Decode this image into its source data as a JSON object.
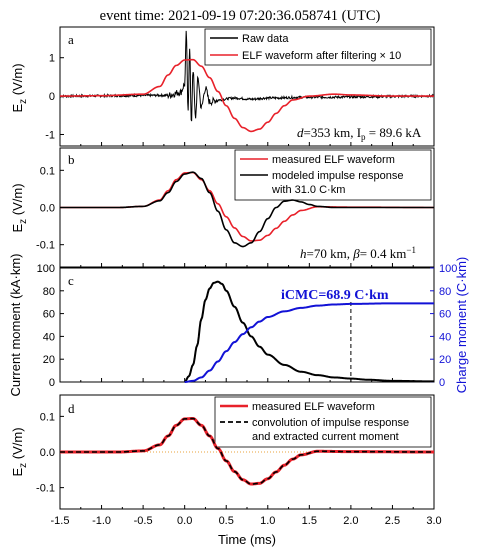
{
  "figure": {
    "title": "event time: 2021-09-19 07:20:36.058741 (UTC)",
    "xlabel": "Time (ms)",
    "x_ticks": [
      "-1.5",
      "-1.0",
      "-0.5",
      "0.0",
      "0.5",
      "1.0",
      "1.5",
      "2.0",
      "2.5",
      "3.0"
    ],
    "colors": {
      "red": "#e8212a",
      "black": "#000000",
      "blue": "#1212d6",
      "orange_dots": "#e8a33c"
    }
  },
  "chart_data": [
    {
      "panel": "a",
      "type": "line",
      "ylabel_main": "E",
      "ylabel_sub": "z",
      "ylabel_unit": " (V/m)",
      "xlim": [
        -1.5,
        3.0
      ],
      "ylim": [
        -1.3,
        1.8
      ],
      "y_ticks": [
        -1,
        0,
        1
      ],
      "legend": [
        "Raw data",
        "ELF waveform after filtering × 10"
      ],
      "legend_position": "top-right",
      "annotation_d": "d",
      "annotation_mid": "=353 km, I",
      "annotation_sub": "p",
      "annotation_end": " = 89.6 kA",
      "series": [
        {
          "name": "Raw data",
          "color": "#000000",
          "style": "noisy-impulse",
          "x": [
            -1.5,
            -0.2,
            -0.05,
            0.0,
            0.02,
            0.04,
            0.06,
            0.08,
            0.1,
            0.13,
            0.16,
            0.2,
            0.25,
            0.3,
            0.4,
            0.6,
            0.8,
            1.0,
            1.5,
            3.0
          ],
          "y": [
            0.0,
            0.02,
            0.1,
            0.3,
            1.65,
            -0.4,
            1.3,
            -0.75,
            0.7,
            -0.55,
            0.45,
            -0.3,
            0.2,
            -0.15,
            -0.1,
            -0.05,
            -0.08,
            -0.05,
            -0.03,
            0.0
          ]
        },
        {
          "name": "ELF waveform after filtering × 10",
          "color": "#e8212a",
          "x": [
            -1.5,
            -1.0,
            -0.5,
            -0.3,
            -0.2,
            -0.1,
            0.0,
            0.1,
            0.2,
            0.3,
            0.4,
            0.5,
            0.6,
            0.7,
            0.8,
            0.9,
            1.0,
            1.1,
            1.2,
            1.3,
            1.5,
            1.8,
            2.0,
            2.5,
            3.0
          ],
          "y": [
            0,
            0.01,
            0.05,
            0.25,
            0.55,
            0.8,
            0.94,
            0.95,
            0.78,
            0.48,
            0.12,
            -0.25,
            -0.58,
            -0.82,
            -0.92,
            -0.86,
            -0.68,
            -0.45,
            -0.25,
            -0.1,
            0.0,
            0.05,
            0.03,
            0.0,
            0.0
          ]
        }
      ]
    },
    {
      "panel": "b",
      "type": "line",
      "ylabel_main": "E",
      "ylabel_sub": "z",
      "ylabel_unit": " (V/m)",
      "xlim": [
        -1.5,
        3.0
      ],
      "ylim": [
        -0.16,
        0.16
      ],
      "y_ticks": [
        -0.1,
        0.0,
        0.1
      ],
      "legend": [
        "measured ELF waveform",
        "modeled impulse response",
        "with 31.0 C·km"
      ],
      "legend_position": "top-right",
      "annotation_h": "h",
      "annotation_mid": "=70 km, ",
      "annotation_beta": "β",
      "annotation_end": "= 0.4 km",
      "annotation_sup": "−1",
      "series": [
        {
          "name": "measured ELF waveform",
          "color": "#e8212a",
          "x": [
            -1.5,
            -0.8,
            -0.5,
            -0.3,
            -0.2,
            -0.1,
            0.0,
            0.1,
            0.2,
            0.3,
            0.4,
            0.5,
            0.6,
            0.7,
            0.8,
            0.9,
            1.0,
            1.1,
            1.2,
            1.3,
            1.4,
            1.6,
            2.0,
            3.0
          ],
          "y": [
            0,
            0,
            0.003,
            0.02,
            0.045,
            0.075,
            0.093,
            0.094,
            0.075,
            0.045,
            0.01,
            -0.025,
            -0.055,
            -0.078,
            -0.09,
            -0.088,
            -0.075,
            -0.056,
            -0.037,
            -0.02,
            -0.008,
            0.002,
            0.001,
            0
          ]
        },
        {
          "name": "modeled impulse response",
          "color": "#000000",
          "x": [
            -1.5,
            -0.8,
            -0.5,
            -0.3,
            -0.2,
            -0.1,
            0.0,
            0.1,
            0.2,
            0.3,
            0.4,
            0.5,
            0.6,
            0.7,
            0.8,
            0.9,
            1.0,
            1.1,
            1.2,
            1.3,
            1.4,
            1.5,
            1.6,
            1.8,
            2.0,
            3.0
          ],
          "y": [
            0,
            0,
            0.003,
            0.018,
            0.04,
            0.07,
            0.09,
            0.095,
            0.078,
            0.04,
            -0.01,
            -0.06,
            -0.095,
            -0.105,
            -0.095,
            -0.065,
            -0.03,
            0.0,
            0.017,
            0.02,
            0.015,
            0.008,
            0.003,
            0,
            0,
            0
          ]
        }
      ]
    },
    {
      "panel": "c",
      "type": "line",
      "ylabel_left": "Current moment (kA·km)",
      "ylabel_right": "Charge moment (C·km)",
      "xlim": [
        -1.5,
        3.0
      ],
      "ylim_left": [
        0,
        100
      ],
      "ylim_right": [
        0,
        100
      ],
      "y_ticks_left": [
        0,
        20,
        40,
        60,
        80,
        100
      ],
      "y_ticks_right": [
        0,
        20,
        40,
        60,
        80,
        100
      ],
      "annotation": "iCMC=68.9 C·km",
      "dashed_x": 2.0,
      "series": [
        {
          "name": "Current moment",
          "axis": "left",
          "color": "#000000",
          "x": [
            0.0,
            0.05,
            0.1,
            0.15,
            0.2,
            0.25,
            0.3,
            0.35,
            0.4,
            0.45,
            0.5,
            0.6,
            0.7,
            0.8,
            0.9,
            1.0,
            1.2,
            1.4,
            1.6,
            1.8,
            2.0,
            2.2,
            2.5,
            3.0
          ],
          "y": [
            0,
            5,
            15,
            32,
            55,
            72,
            82,
            87,
            88,
            86,
            80,
            66,
            52,
            40,
            31,
            24,
            15,
            9,
            6,
            4,
            3,
            2,
            1,
            0.5
          ]
        },
        {
          "name": "Charge moment",
          "axis": "right",
          "color": "#1212d6",
          "x": [
            0.0,
            0.1,
            0.2,
            0.3,
            0.4,
            0.5,
            0.6,
            0.7,
            0.8,
            0.9,
            1.0,
            1.2,
            1.4,
            1.6,
            1.8,
            2.0,
            2.5,
            3.0
          ],
          "y": [
            0,
            1,
            4,
            10,
            18,
            27,
            35,
            42,
            48,
            53,
            57,
            62,
            65,
            67,
            68,
            68.5,
            69,
            69
          ]
        }
      ]
    },
    {
      "panel": "d",
      "type": "line",
      "ylabel_main": "E",
      "ylabel_sub": "z",
      "ylabel_unit": " (V/m)",
      "xlim": [
        -1.5,
        3.0
      ],
      "ylim": [
        -0.16,
        0.16
      ],
      "y_ticks": [
        -0.1,
        0.0,
        0.1
      ],
      "legend": [
        "measured ELF waveform",
        "convolution of impulse response",
        "and extracted current moment"
      ],
      "legend_position": "top-right",
      "series": [
        {
          "name": "measured ELF waveform",
          "color": "#e8212a",
          "x": [
            -1.5,
            -0.8,
            -0.5,
            -0.3,
            -0.2,
            -0.1,
            0.0,
            0.1,
            0.2,
            0.3,
            0.4,
            0.5,
            0.6,
            0.7,
            0.8,
            0.9,
            1.0,
            1.1,
            1.2,
            1.3,
            1.4,
            1.6,
            2.0,
            3.0
          ],
          "y": [
            0,
            0,
            0.003,
            0.02,
            0.045,
            0.075,
            0.093,
            0.094,
            0.075,
            0.045,
            0.01,
            -0.025,
            -0.055,
            -0.078,
            -0.09,
            -0.088,
            -0.075,
            -0.056,
            -0.037,
            -0.02,
            -0.008,
            0.002,
            0.001,
            0
          ]
        },
        {
          "name": "convolution of impulse response and extracted current moment",
          "color": "#000000",
          "dashed": true,
          "x": [
            -1.5,
            -0.8,
            -0.5,
            -0.3,
            -0.2,
            -0.1,
            0.0,
            0.1,
            0.2,
            0.3,
            0.4,
            0.5,
            0.6,
            0.7,
            0.8,
            0.9,
            1.0,
            1.1,
            1.2,
            1.3,
            1.4,
            1.6,
            2.0,
            3.0
          ],
          "y": [
            0,
            0,
            0.003,
            0.02,
            0.045,
            0.075,
            0.093,
            0.094,
            0.075,
            0.045,
            0.01,
            -0.025,
            -0.055,
            -0.078,
            -0.09,
            -0.088,
            -0.075,
            -0.056,
            -0.037,
            -0.02,
            -0.008,
            0.002,
            0.001,
            0
          ]
        }
      ]
    }
  ]
}
